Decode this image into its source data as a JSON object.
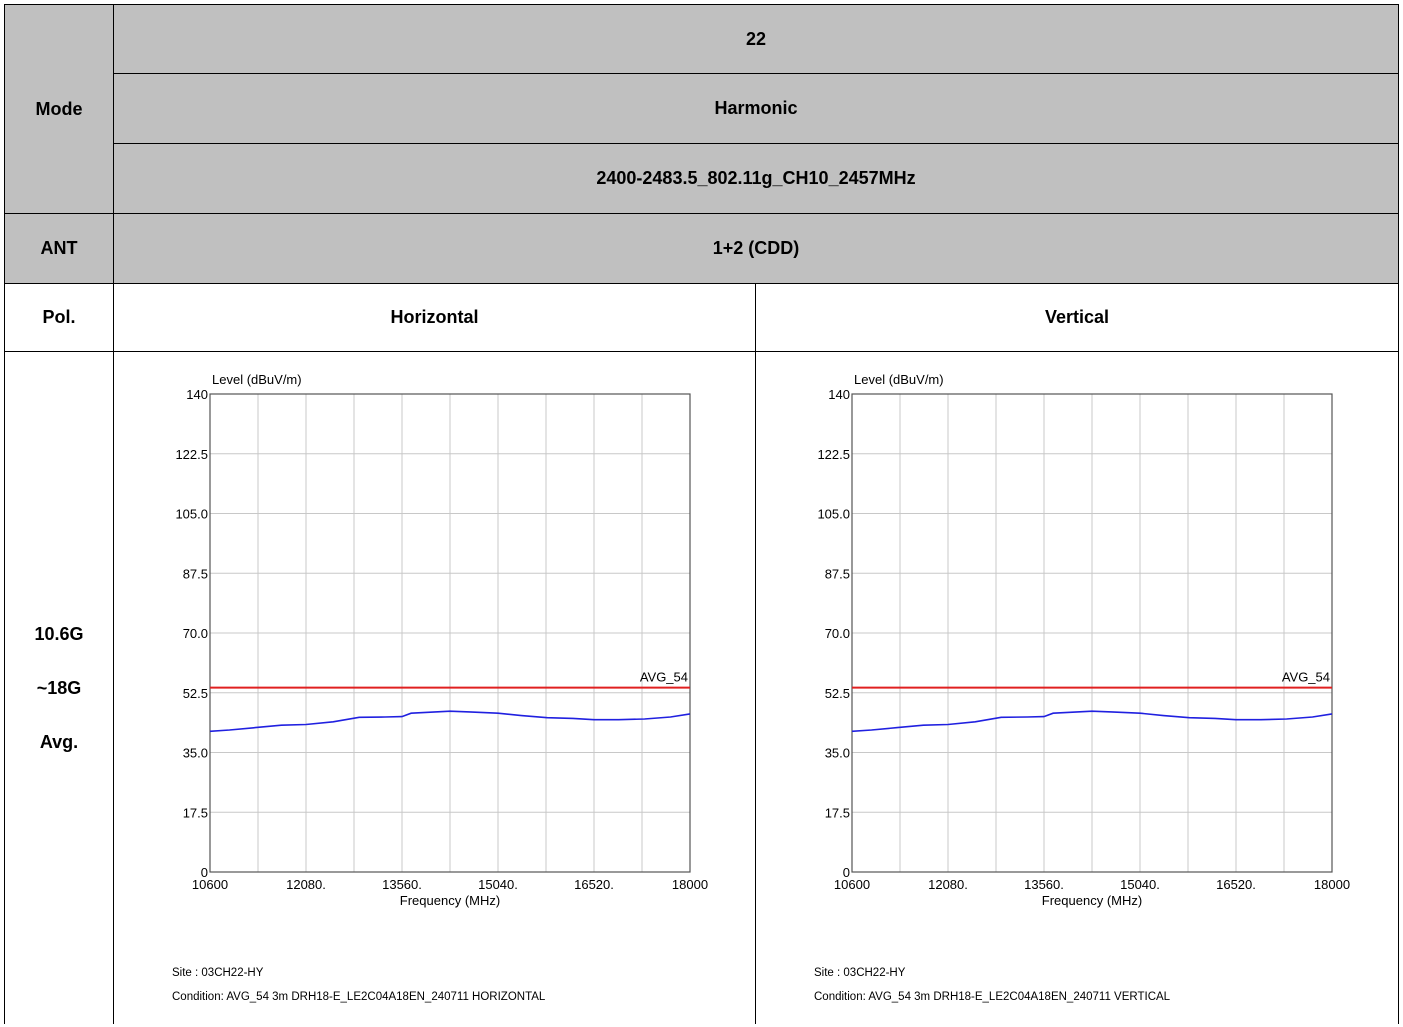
{
  "table": {
    "mode_label": "Mode",
    "mode_values": [
      "22",
      "Harmonic",
      "2400-2483.5_802.11g_CH10_2457MHz"
    ],
    "ant_label": "ANT",
    "ant_value": "1+2 (CDD)",
    "pol_label": "Pol.",
    "pol_horizontal": "Horizontal",
    "pol_vertical": "Vertical",
    "range_label": [
      "10.6G",
      "~18G",
      "Avg."
    ]
  },
  "chart_data": [
    {
      "type": "line",
      "ylabel": "Level (dBuV/m)",
      "xlabel": "Frequency (MHz)",
      "xlim": [
        10600,
        18000
      ],
      "ylim": [
        0,
        140
      ],
      "x_ticks": [
        "10600",
        "12080.",
        "13560.",
        "15040.",
        "16520.",
        "18000"
      ],
      "y_ticks": [
        "140",
        "122.5",
        "105.0",
        "87.5",
        "70.0",
        "52.5",
        "35.0",
        "17.5",
        "0"
      ],
      "grid": true,
      "limit_line": {
        "name": "AVG_54",
        "value": 54,
        "color": "#e02020"
      },
      "series": [
        {
          "color": "#2020e0",
          "x": [
            10600,
            10900,
            11300,
            11700,
            12080,
            12500,
            12900,
            13300,
            13560,
            13700,
            14000,
            14300,
            14600,
            15040,
            15400,
            15800,
            16200,
            16520,
            16900,
            17300,
            17700,
            18000
          ],
          "values": [
            41.2,
            41.6,
            42.3,
            43.0,
            43.2,
            44.0,
            45.3,
            45.4,
            45.5,
            46.5,
            46.8,
            47.1,
            46.9,
            46.5,
            45.8,
            45.2,
            45.0,
            44.6,
            44.6,
            44.8,
            45.4,
            46.3
          ]
        }
      ],
      "site_line": "Site    : 03CH22-HY",
      "condition_line": "Condition: AVG_54 3m DRH18-E_LE2C04A18EN_240711 HORIZONTAL"
    },
    {
      "type": "line",
      "ylabel": "Level (dBuV/m)",
      "xlabel": "Frequency (MHz)",
      "xlim": [
        10600,
        18000
      ],
      "ylim": [
        0,
        140
      ],
      "x_ticks": [
        "10600",
        "12080.",
        "13560.",
        "15040.",
        "16520.",
        "18000"
      ],
      "y_ticks": [
        "140",
        "122.5",
        "105.0",
        "87.5",
        "70.0",
        "52.5",
        "35.0",
        "17.5",
        "0"
      ],
      "grid": true,
      "limit_line": {
        "name": "AVG_54",
        "value": 54,
        "color": "#e02020"
      },
      "series": [
        {
          "color": "#2020e0",
          "x": [
            10600,
            10900,
            11300,
            11700,
            12080,
            12500,
            12900,
            13300,
            13560,
            13700,
            14000,
            14300,
            14600,
            15040,
            15400,
            15800,
            16200,
            16520,
            16900,
            17300,
            17700,
            18000
          ],
          "values": [
            41.2,
            41.6,
            42.3,
            43.0,
            43.2,
            44.0,
            45.3,
            45.4,
            45.5,
            46.5,
            46.8,
            47.1,
            46.9,
            46.5,
            45.8,
            45.2,
            45.0,
            44.6,
            44.6,
            44.8,
            45.4,
            46.3
          ]
        }
      ],
      "site_line": "Site    : 03CH22-HY",
      "condition_line": "Condition: AVG_54 3m DRH18-E_LE2C04A18EN_240711 VERTICAL"
    }
  ]
}
